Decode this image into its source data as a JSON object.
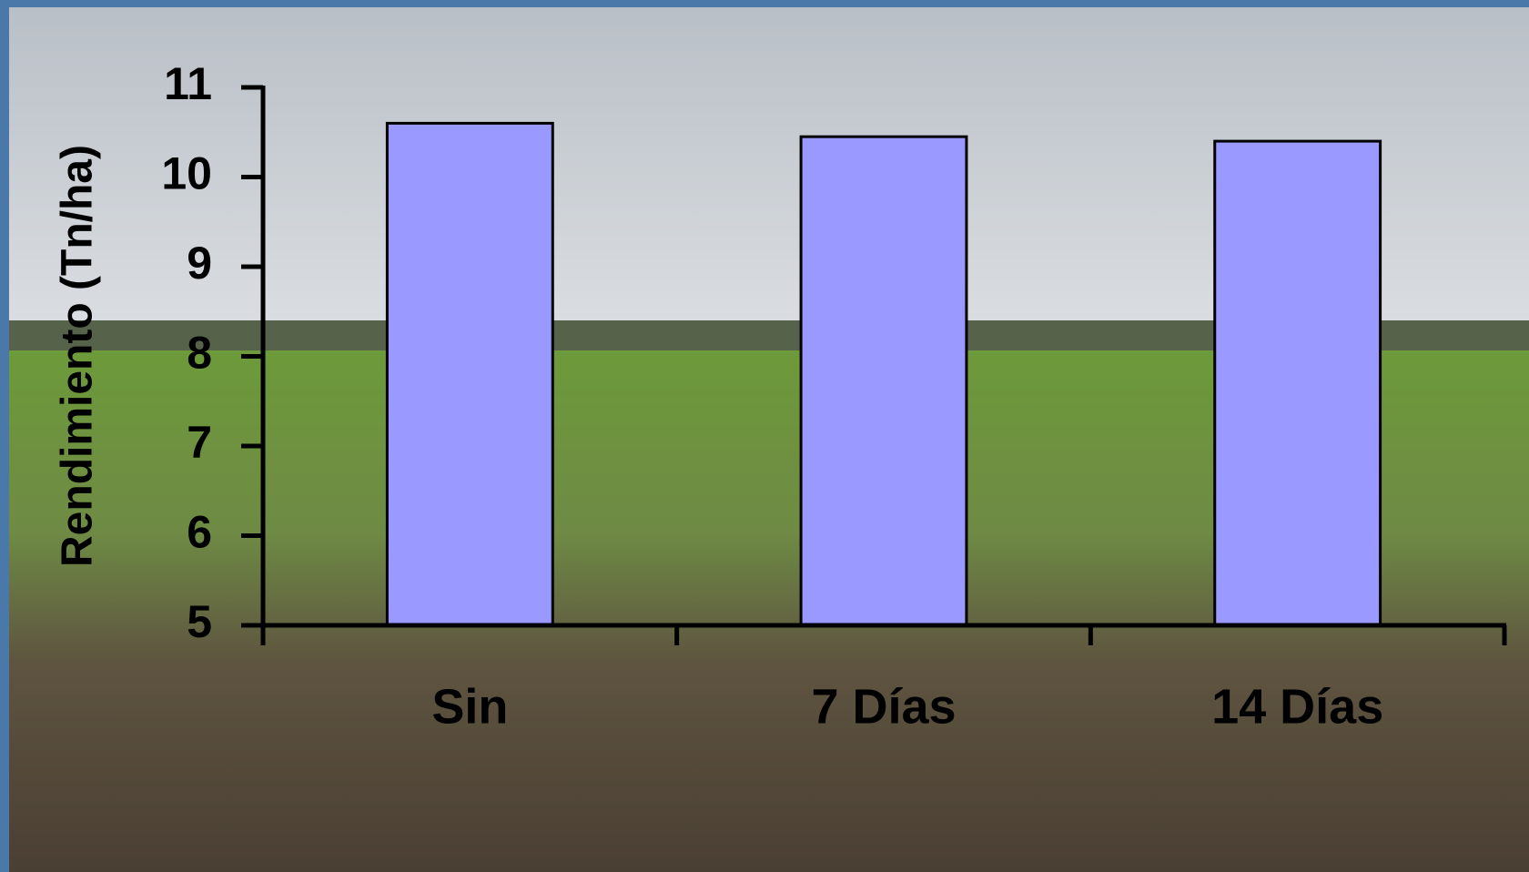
{
  "chart_data": {
    "type": "bar",
    "y_label": "Rendimiento (Tn/ha)",
    "categories": [
      "Sin",
      "7 Días",
      "14 Días"
    ],
    "values": [
      10.6,
      10.45,
      10.4
    ],
    "color": "#9999ff",
    "ylim": [
      5,
      11
    ],
    "yticks": [
      5,
      6,
      7,
      8,
      9,
      10,
      11
    ]
  }
}
